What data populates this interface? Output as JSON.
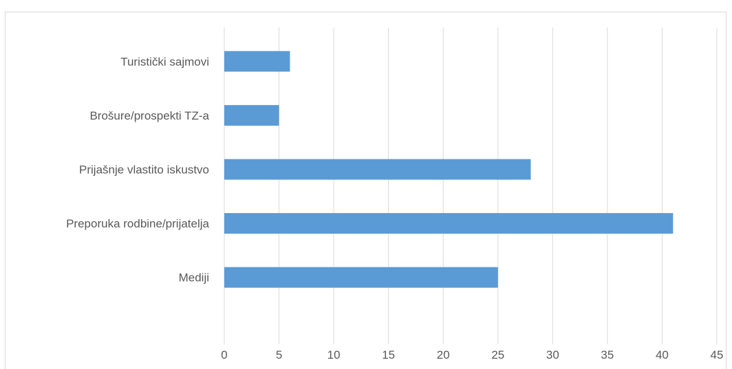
{
  "chart_data": {
    "type": "bar",
    "orientation": "horizontal",
    "categories": [
      "Turistički sajmovi",
      "Brošure/prospekti TZ-a",
      "Prijašnje vlastito iskustvo",
      "Preporuka rodbine/prijatelja",
      "Mediji"
    ],
    "values": [
      6,
      5,
      28,
      41,
      25
    ],
    "xlim": [
      0,
      45
    ],
    "xticks": [
      "0",
      "5",
      "10",
      "15",
      "20",
      "25",
      "30",
      "35",
      "40",
      "45"
    ],
    "grid": true,
    "legend": "none",
    "title": "",
    "xlabel": "",
    "ylabel": "",
    "colors": {
      "bar": "#5b9bd5",
      "grid": "#d9d9d9",
      "text": "#595959",
      "frame": "#d9d9d9"
    }
  }
}
